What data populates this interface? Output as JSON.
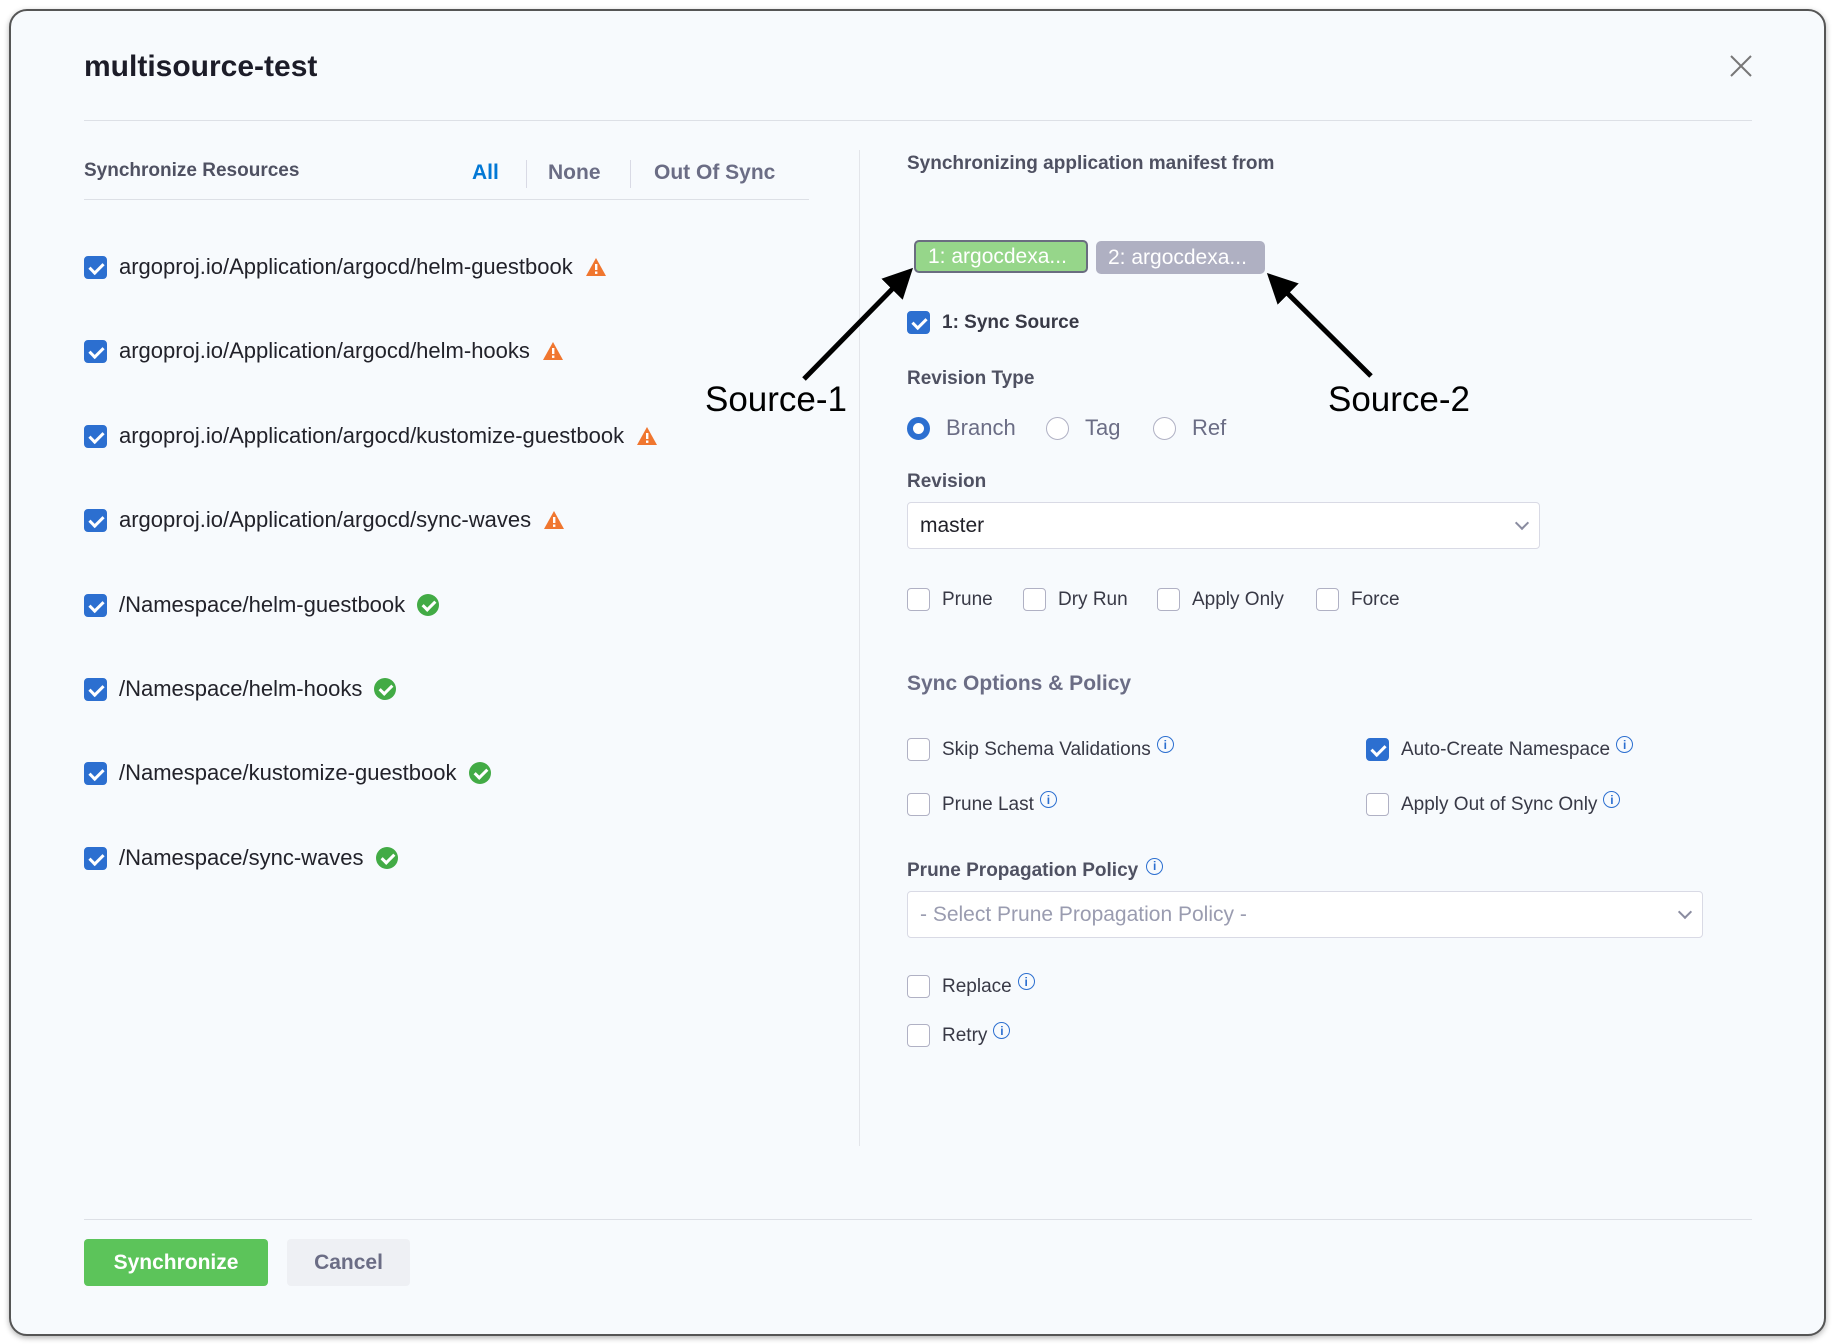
{
  "title": "multisource-test",
  "left": {
    "heading": "Synchronize Resources",
    "tabs": [
      {
        "label": "All",
        "active": true
      },
      {
        "label": "None"
      },
      {
        "label": "Out Of Sync"
      }
    ],
    "resources": [
      {
        "name": "argoproj.io/Application/argocd/helm-guestbook",
        "status": "warning",
        "checked": true
      },
      {
        "name": "argoproj.io/Application/argocd/helm-hooks",
        "status": "warning",
        "checked": true
      },
      {
        "name": "argoproj.io/Application/argocd/kustomize-guestbook",
        "status": "warning",
        "checked": true
      },
      {
        "name": "argoproj.io/Application/argocd/sync-waves",
        "status": "warning",
        "checked": true
      },
      {
        "name": "/Namespace/helm-guestbook",
        "status": "synced",
        "checked": true
      },
      {
        "name": "/Namespace/helm-hooks",
        "status": "synced",
        "checked": true
      },
      {
        "name": "/Namespace/kustomize-guestbook",
        "status": "synced",
        "checked": true
      },
      {
        "name": "/Namespace/sync-waves",
        "status": "synced",
        "checked": true
      }
    ]
  },
  "right": {
    "heading": "Synchronizing application manifest from",
    "sources": [
      {
        "label": "1: argocdexa...",
        "color": "#96d68a"
      },
      {
        "label": "2: argocdexa...",
        "color": "#afb0c2"
      }
    ],
    "sync_source_label": "1: Sync Source",
    "revision_type_label": "Revision Type",
    "revision_types": [
      {
        "label": "Branch",
        "selected": true
      },
      {
        "label": "Tag"
      },
      {
        "label": "Ref"
      }
    ],
    "revision_label": "Revision",
    "revision_value": "master",
    "flags": [
      {
        "label": "Prune"
      },
      {
        "label": "Dry Run"
      },
      {
        "label": "Apply Only"
      },
      {
        "label": "Force"
      }
    ],
    "options_heading": "Sync Options & Policy",
    "options": [
      {
        "label": "Skip Schema Validations",
        "checked": false
      },
      {
        "label": "Auto-Create Namespace",
        "checked": true
      },
      {
        "label": "Prune Last",
        "checked": false
      },
      {
        "label": "Apply Out of Sync Only",
        "checked": false
      }
    ],
    "prune_policy_label": "Prune Propagation Policy",
    "prune_policy_placeholder": "- Select Prune Propagation Policy -",
    "replace_label": "Replace",
    "retry_label": "Retry"
  },
  "footer": {
    "synchronize": "Synchronize",
    "cancel": "Cancel"
  },
  "annotations": {
    "source1": "Source-1",
    "source2": "Source-2"
  },
  "colors": {
    "accent": "#2c6fd0",
    "primary_button": "#5cc45a",
    "warning": "#f0762f",
    "success": "#42ab45"
  }
}
